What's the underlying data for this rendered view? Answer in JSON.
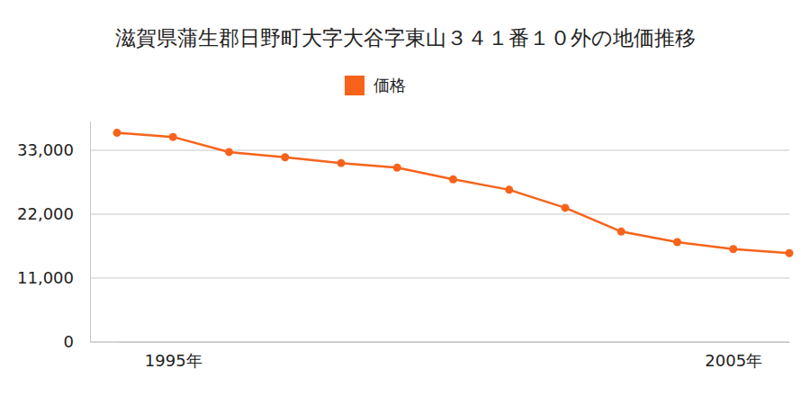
{
  "chart_data": {
    "type": "line",
    "title": "滋賀県蒲生郡日野町大字大谷字東山３４１番１０外の地価推移",
    "categories": [
      null,
      "1995年",
      null,
      null,
      null,
      null,
      null,
      null,
      null,
      null,
      null,
      "2005年",
      null
    ],
    "series": [
      {
        "name": "価格",
        "color": "#f7631b",
        "marker": "circle",
        "values": [
          36000,
          35300,
          32700,
          31800,
          30800,
          30000,
          28000,
          26200,
          23100,
          19000,
          17200,
          16000,
          15300
        ]
      }
    ],
    "ylim": [
      0,
      38000
    ],
    "yticks": [
      0,
      {
        "value": 11000,
        "label": "11,000"
      },
      {
        "value": 22000,
        "label": "22,000"
      },
      {
        "value": 33000,
        "label": "33,000"
      }
    ],
    "grid": true,
    "legend": "top"
  }
}
